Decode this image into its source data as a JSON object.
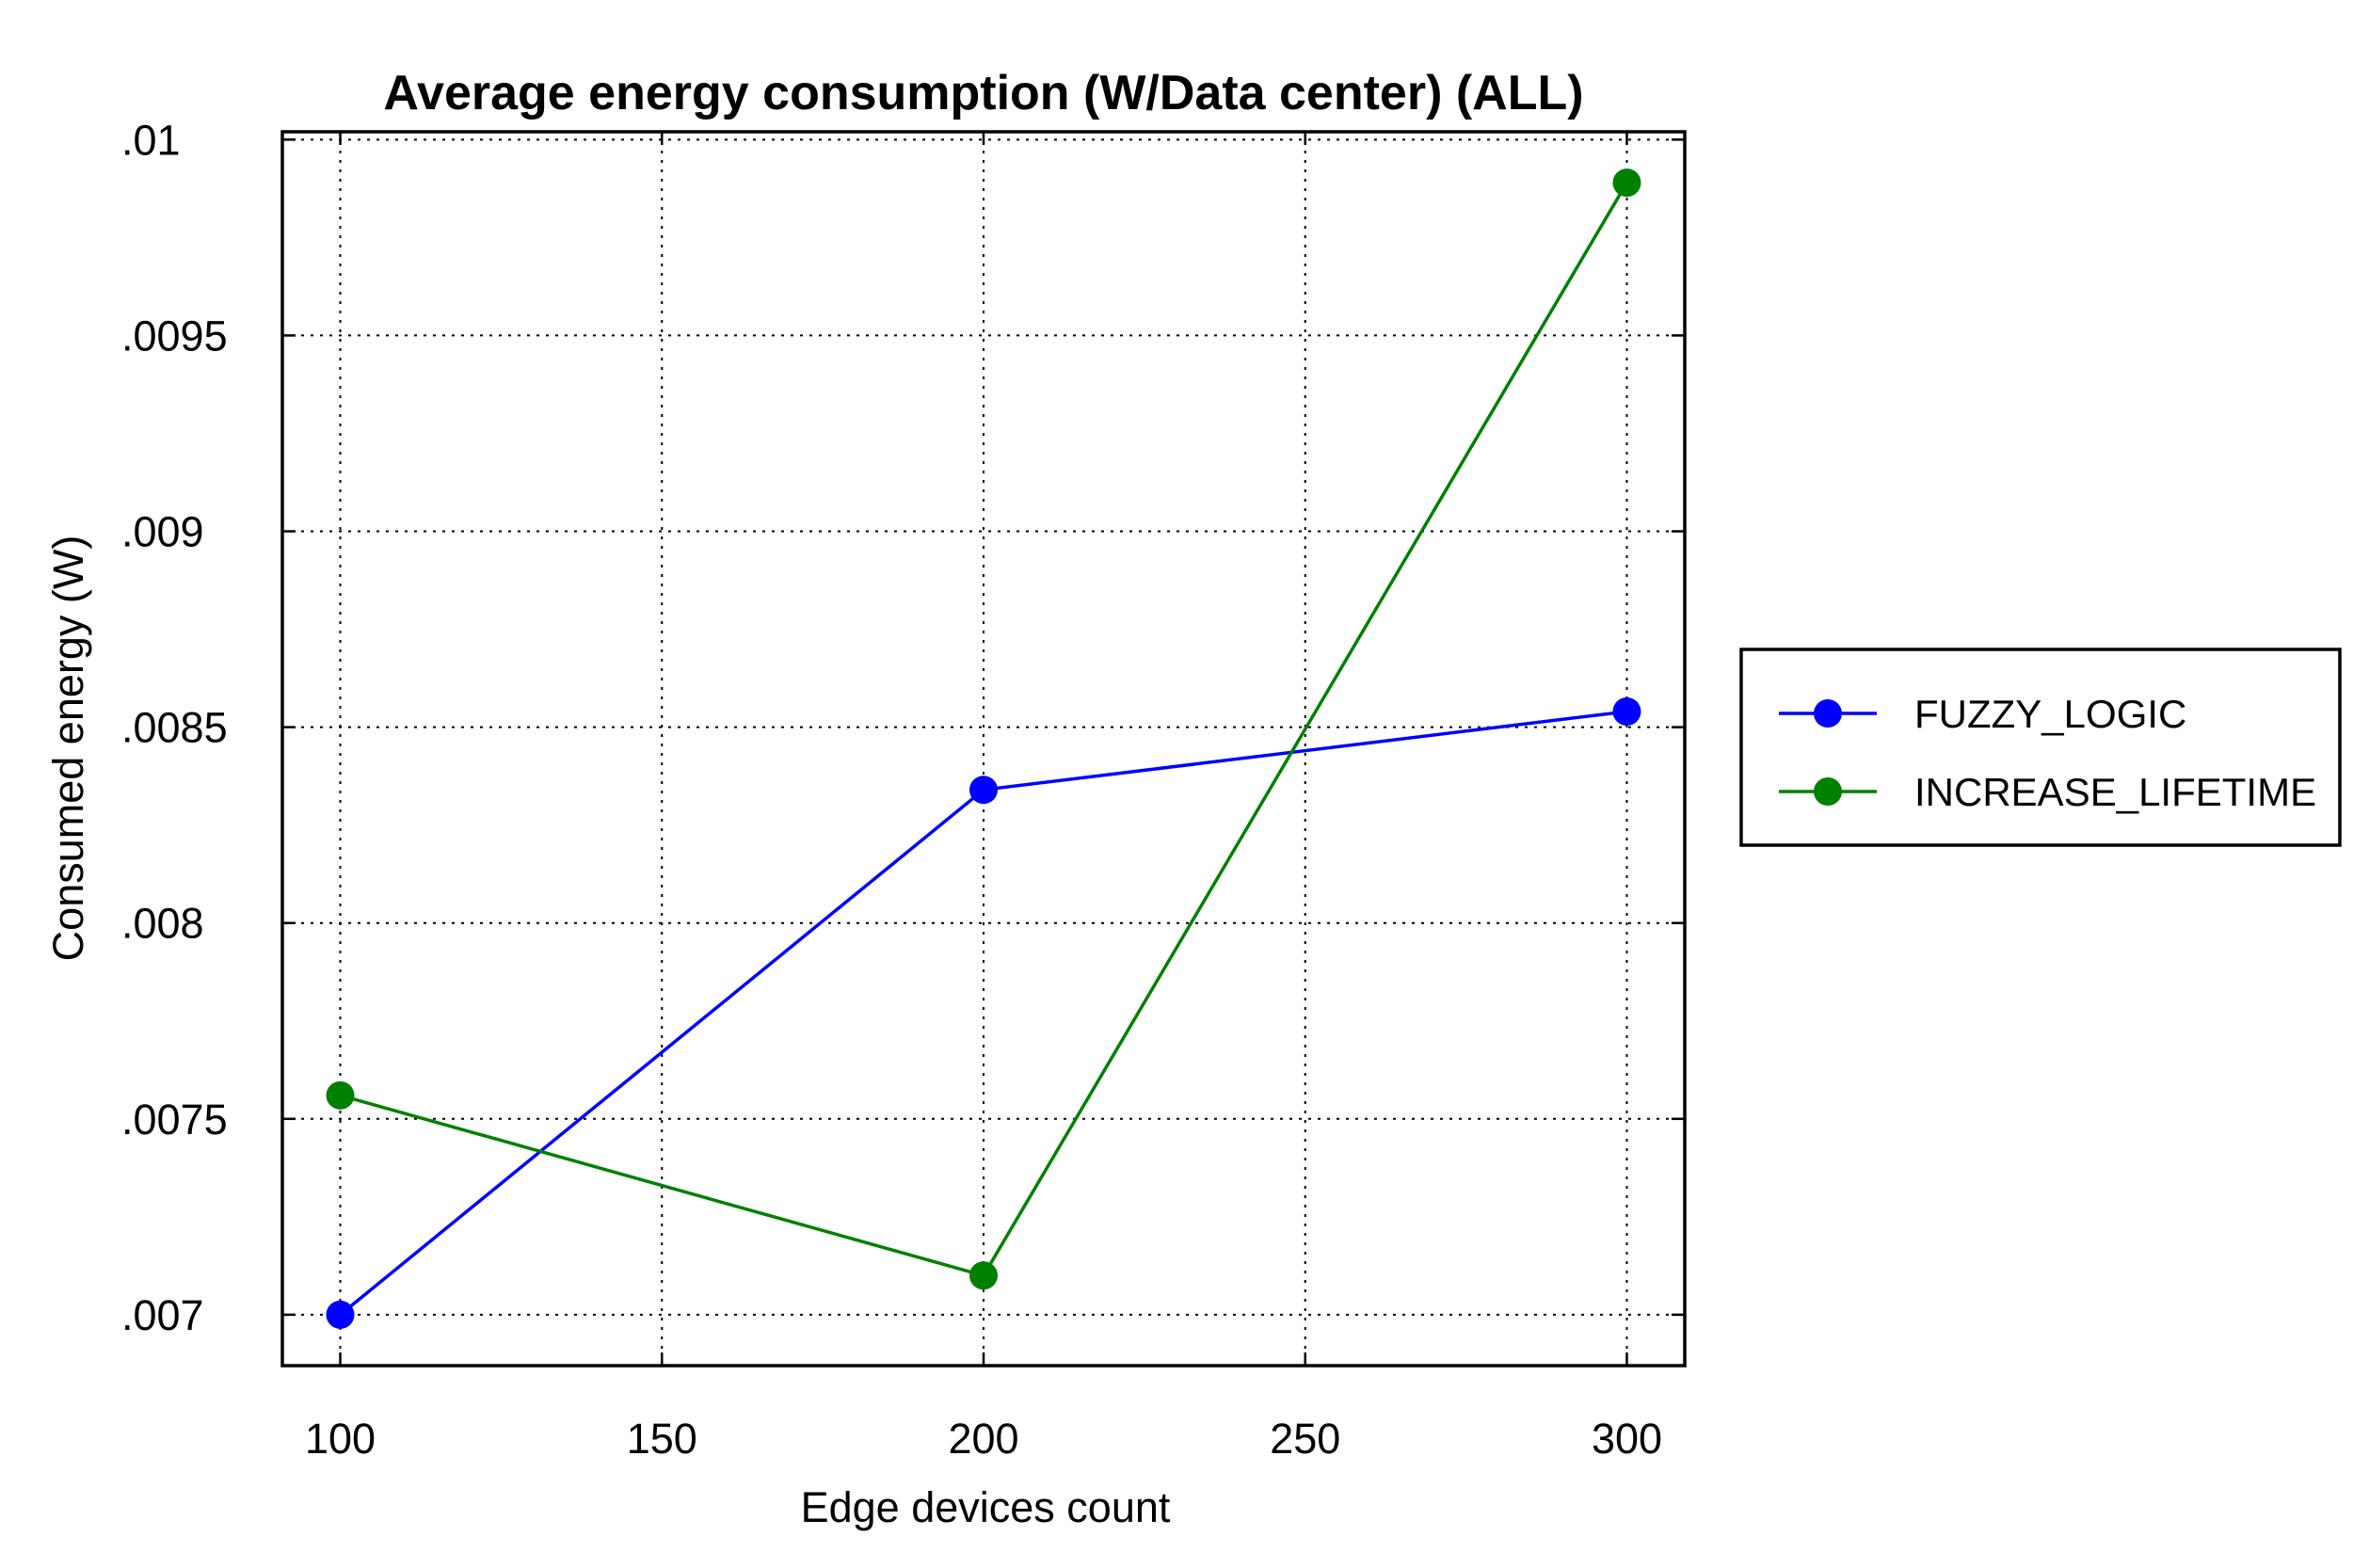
{
  "chart_data": {
    "type": "line",
    "title": "Average energy consumption (W/Data center) (ALL)",
    "xlabel": "Edge devices count",
    "ylabel": "Consumed energy (W)",
    "x": [
      100,
      200,
      300
    ],
    "xlim": [
      91,
      309
    ],
    "ylim": [
      0.00687,
      0.01002
    ],
    "xticks": [
      100,
      150,
      200,
      250,
      300
    ],
    "xtick_labels": [
      "100",
      "150",
      "200",
      "250",
      "300"
    ],
    "yticks": [
      0.007,
      0.0075,
      0.008,
      0.0085,
      0.009,
      0.0095,
      0.01
    ],
    "ytick_labels": [
      ".007",
      ".0075",
      ".008",
      ".0085",
      ".009",
      ".0095",
      ".01"
    ],
    "grid": true,
    "legend_position": "right",
    "series": [
      {
        "name": "FUZZY_LOGIC",
        "color": "#0000ff",
        "values": [
          0.007,
          0.00834,
          0.00854
        ]
      },
      {
        "name": "INCREASE_LIFETIME",
        "color": "#008000",
        "values": [
          0.00756,
          0.0071,
          0.00989
        ]
      }
    ]
  }
}
